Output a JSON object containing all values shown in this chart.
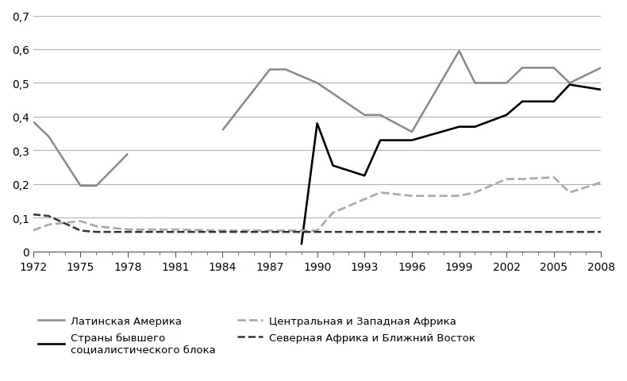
{
  "ylim": [
    0,
    0.7
  ],
  "yticks": [
    0,
    0.1,
    0.2,
    0.3,
    0.4,
    0.5,
    0.6,
    0.7
  ],
  "series": {
    "latin_america": {
      "label": "Латинская Америка",
      "color": "#888888",
      "linestyle": "solid",
      "linewidth": 1.8,
      "segments": [
        {
          "x": [
            1972,
            1973,
            1975,
            1976,
            1978
          ],
          "y": [
            0.385,
            0.34,
            0.195,
            0.195,
            0.29
          ]
        },
        {
          "x": [
            1984,
            1987,
            1988,
            1990,
            1993,
            1994,
            1996,
            1999,
            2000,
            2002,
            2003,
            2005,
            2006,
            2008
          ],
          "y": [
            0.36,
            0.54,
            0.54,
            0.5,
            0.405,
            0.405,
            0.355,
            0.595,
            0.5,
            0.5,
            0.545,
            0.545,
            0.5,
            0.545
          ]
        }
      ]
    },
    "post_socialist": {
      "label": "Страны бывшего\nсоциалистического блока",
      "color": "#000000",
      "linestyle": "solid",
      "linewidth": 1.9,
      "segments": [
        {
          "x": [
            1989,
            1990,
            1991,
            1993,
            1994,
            1996,
            1999,
            2000,
            2002,
            2003,
            2005,
            2006,
            2008
          ],
          "y": [
            0.02,
            0.38,
            0.255,
            0.225,
            0.33,
            0.33,
            0.37,
            0.37,
            0.405,
            0.445,
            0.445,
            0.495,
            0.48
          ]
        }
      ]
    },
    "central_west_africa": {
      "label": "Центральная и Западная Африка",
      "color": "#aaaaaa",
      "linestyle": "dashed",
      "linewidth": 2.0,
      "segments": [
        {
          "x": [
            1972,
            1973,
            1975,
            1976,
            1978,
            1981,
            1984,
            1987,
            1990,
            1991,
            1993,
            1994,
            1996,
            1999,
            2000,
            2002,
            2003,
            2005,
            2006,
            2008
          ],
          "y": [
            0.063,
            0.08,
            0.09,
            0.075,
            0.065,
            0.065,
            0.062,
            0.062,
            0.062,
            0.115,
            0.155,
            0.175,
            0.165,
            0.165,
            0.175,
            0.215,
            0.215,
            0.22,
            0.175,
            0.205
          ]
        }
      ]
    },
    "north_africa_me": {
      "label": "Северная Африка и Ближний Восток",
      "color": "#333333",
      "linestyle": "dashed",
      "linewidth": 1.8,
      "segments": [
        {
          "x": [
            1972,
            1973,
            1975,
            1976,
            1978,
            1981,
            1984,
            1987,
            1990,
            1991,
            1993,
            1994,
            1996,
            1999,
            2000,
            2002,
            2003,
            2005,
            2006,
            2008
          ],
          "y": [
            0.11,
            0.105,
            0.062,
            0.058,
            0.058,
            0.058,
            0.058,
            0.058,
            0.058,
            0.058,
            0.058,
            0.058,
            0.058,
            0.058,
            0.058,
            0.058,
            0.058,
            0.058,
            0.058,
            0.058
          ]
        }
      ]
    }
  },
  "xticks": [
    1972,
    1975,
    1978,
    1981,
    1984,
    1987,
    1990,
    1993,
    1996,
    1999,
    2002,
    2005,
    2008
  ],
  "background_color": "#ffffff",
  "grid_color": "#b0b0b0",
  "font_size": 10,
  "legend": {
    "latin_america": "Латинская Америка",
    "post_socialist": "Страны бывшего\nсоциалистического блока",
    "central_west_africa": "Центральная и Западная Африка",
    "north_africa_me": "Северная Африка и Ближний Восток"
  }
}
